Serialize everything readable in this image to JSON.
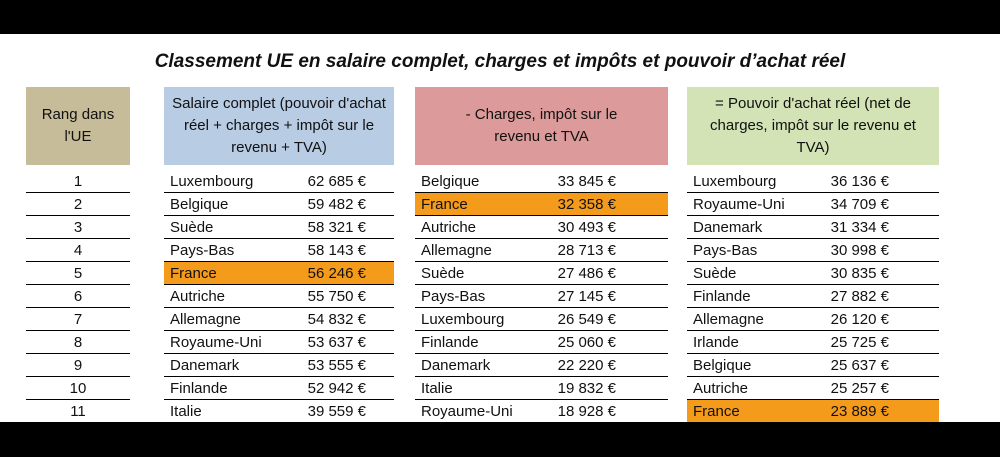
{
  "title": "Classement UE en salaire complet, charges et impôts et pouvoir d’achat réel",
  "colors": {
    "rank_header": "#c7bc99",
    "salary_header": "#b8cce4",
    "charges_header": "#dd9a9a",
    "power_header": "#d3e3b5",
    "highlight": "#f49b1c"
  },
  "rank": {
    "header": "Rang dans l'UE",
    "values": [
      "1",
      "2",
      "3",
      "4",
      "5",
      "6",
      "7",
      "8",
      "9",
      "10",
      "11"
    ]
  },
  "salary": {
    "header": "Salaire complet (pouvoir d'achat réel + charges + impôt sur le revenu + TVA)",
    "rows": [
      {
        "country": "Luxembourg",
        "value": "62 685 €",
        "highlight": false
      },
      {
        "country": "Belgique",
        "value": "59 482 €",
        "highlight": false
      },
      {
        "country": "Suède",
        "value": "58 321 €",
        "highlight": false
      },
      {
        "country": "Pays-Bas",
        "value": "58 143 €",
        "highlight": false
      },
      {
        "country": "France",
        "value": "56 246 €",
        "highlight": true
      },
      {
        "country": "Autriche",
        "value": "55 750 €",
        "highlight": false
      },
      {
        "country": "Allemagne",
        "value": "54 832 €",
        "highlight": false
      },
      {
        "country": "Royaume-Uni",
        "value": "53 637 €",
        "highlight": false
      },
      {
        "country": "Danemark",
        "value": "53 555 €",
        "highlight": false
      },
      {
        "country": "Finlande",
        "value": "52 942 €",
        "highlight": false
      },
      {
        "country": "Italie",
        "value": "39 559 €",
        "highlight": false
      }
    ]
  },
  "charges": {
    "header": "- Charges, impôt sur le revenu et TVA",
    "rows": [
      {
        "country": "Belgique",
        "value": "33 845 €",
        "highlight": false
      },
      {
        "country": "France",
        "value": "32 358 €",
        "highlight": true
      },
      {
        "country": "Autriche",
        "value": "30 493 €",
        "highlight": false
      },
      {
        "country": "Allemagne",
        "value": "28 713 €",
        "highlight": false
      },
      {
        "country": "Suède",
        "value": "27 486 €",
        "highlight": false
      },
      {
        "country": "Pays-Bas",
        "value": "27 145 €",
        "highlight": false
      },
      {
        "country": "Luxembourg",
        "value": "26 549 €",
        "highlight": false
      },
      {
        "country": "Finlande",
        "value": "25 060 €",
        "highlight": false
      },
      {
        "country": "Danemark",
        "value": "22 220 €",
        "highlight": false
      },
      {
        "country": "Italie",
        "value": "19 832 €",
        "highlight": false
      },
      {
        "country": "Royaume-Uni",
        "value": "18 928 €",
        "highlight": false
      }
    ]
  },
  "power": {
    "header": "= Pouvoir d'achat réel (net de charges, impôt sur le revenu et TVA)",
    "rows": [
      {
        "country": "Luxembourg",
        "value": "36 136 €",
        "highlight": false
      },
      {
        "country": "Royaume-Uni",
        "value": "34 709 €",
        "highlight": false
      },
      {
        "country": "Danemark",
        "value": "31 334 €",
        "highlight": false
      },
      {
        "country": "Pays-Bas",
        "value": "30 998 €",
        "highlight": false
      },
      {
        "country": "Suède",
        "value": "30 835 €",
        "highlight": false
      },
      {
        "country": "Finlande",
        "value": "27 882 €",
        "highlight": false
      },
      {
        "country": "Allemagne",
        "value": "26 120 €",
        "highlight": false
      },
      {
        "country": "Irlande",
        "value": "25 725 €",
        "highlight": false
      },
      {
        "country": "Belgique",
        "value": "25 637 €",
        "highlight": false
      },
      {
        "country": "Autriche",
        "value": "25 257 €",
        "highlight": false
      },
      {
        "country": "France",
        "value": "23 889 €",
        "highlight": true
      }
    ]
  }
}
